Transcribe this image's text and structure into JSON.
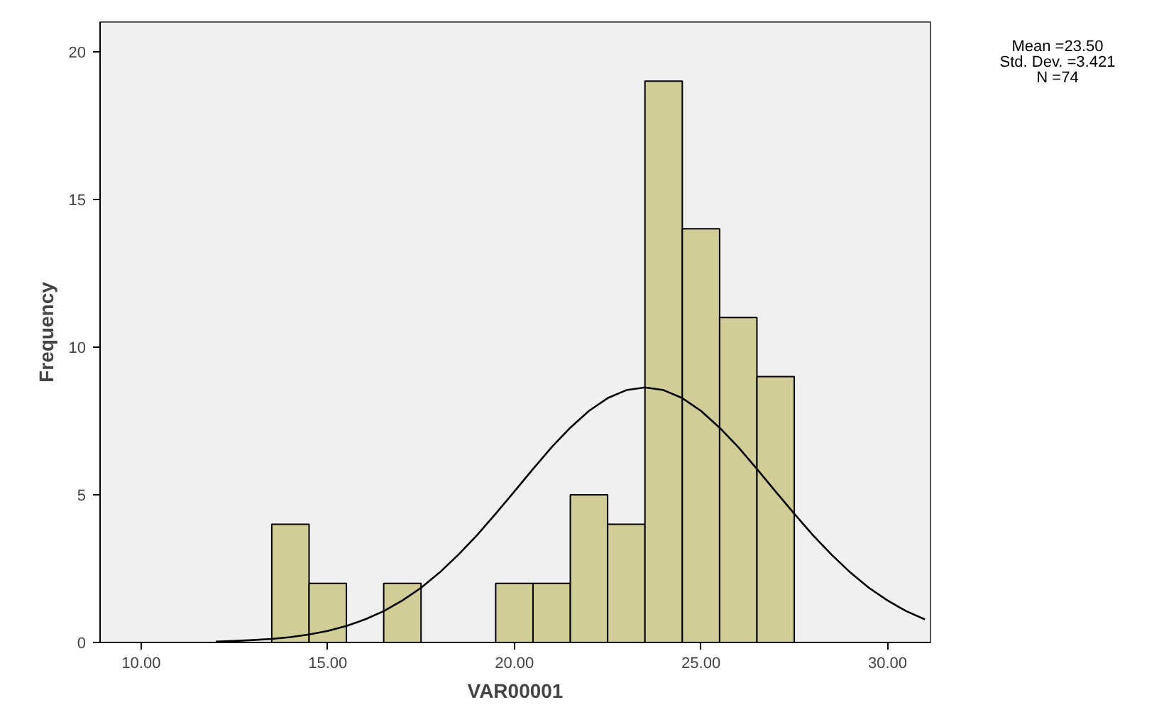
{
  "chart_data": {
    "type": "histogram",
    "xlabel": "VAR00001",
    "ylabel": "Frequency",
    "bins": [
      13.5,
      14.5,
      15.5,
      16.5,
      17.5,
      18.5,
      19.5,
      20.5,
      21.5,
      22.5,
      23.5,
      24.5,
      25.5,
      26.5,
      27.5
    ],
    "values": [
      4,
      2,
      0,
      2,
      0,
      0,
      2,
      2,
      5,
      4,
      19,
      14,
      11,
      9
    ],
    "color": "#d2cd98",
    "series": [
      {
        "type": "line",
        "color": "#000000",
        "x": [
          12,
          12.5,
          13,
          13.5,
          14,
          14.5,
          15,
          15.5,
          16,
          16.5,
          17,
          17.5,
          18,
          18.5,
          19,
          19.5,
          20,
          20.5,
          21,
          21.5,
          22,
          22.5,
          23,
          23.5,
          24,
          24.5,
          25,
          25.5,
          26,
          26.5,
          27,
          27.5,
          28,
          28.5,
          29,
          29.5,
          30,
          30.5,
          31
        ],
        "values": [
          0.03,
          0.05,
          0.08,
          0.12,
          0.18,
          0.27,
          0.39,
          0.56,
          0.78,
          1.06,
          1.42,
          1.85,
          2.37,
          2.97,
          3.63,
          4.36,
          5.11,
          5.87,
          6.61,
          7.27,
          7.84,
          8.27,
          8.54,
          8.63,
          8.54,
          8.27,
          7.84,
          7.27,
          6.61,
          5.87,
          5.11,
          4.36,
          3.63,
          2.97,
          2.37,
          1.85,
          1.42,
          1.06,
          0.78
        ]
      }
    ],
    "xlim": [
      8.9,
      31.15
    ],
    "ylim": [
      0,
      21
    ],
    "xticks": [
      {
        "value": 10,
        "label": "10.00"
      },
      {
        "value": 15,
        "label": "15.00"
      },
      {
        "value": 20,
        "label": "20.00"
      },
      {
        "value": 25,
        "label": "25.00"
      },
      {
        "value": 30,
        "label": "30.00"
      }
    ],
    "yticks": [
      0,
      5,
      10,
      15,
      20
    ],
    "grid": false,
    "annotations": [
      "Mean =23.50",
      "Std. Dev. =3.421",
      "N =74"
    ]
  }
}
